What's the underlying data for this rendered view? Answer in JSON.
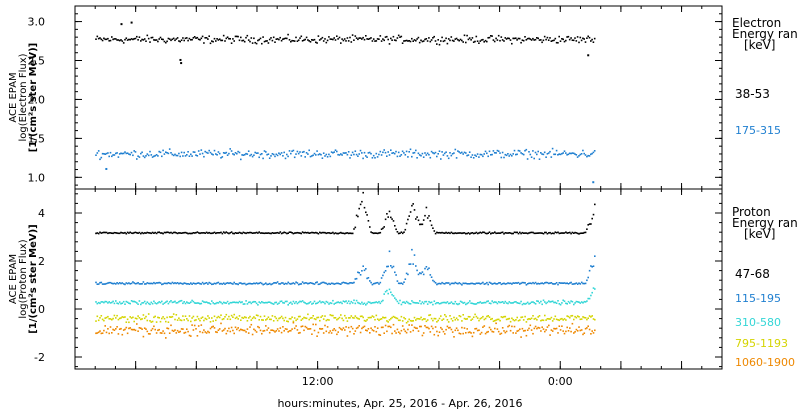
{
  "xlabel": "hours:minutes, Apr. 25, 2016 - Apr. 26, 2016",
  "chart_data": [
    {
      "type": "scatter",
      "panel": "electron",
      "ylabel_lines": [
        "ACE EPAM",
        "log(Electron Flux)",
        "[1/(cm²s ster MeV)]"
      ],
      "legend_title_lines": [
        "Electron",
        "Energy ran",
        "[keV]"
      ],
      "ylim": [
        0.85,
        3.2
      ],
      "yticks": [
        1.0,
        1.5,
        2.0,
        2.5,
        3.0
      ],
      "ytick_labels": [
        "1.0",
        "1.5",
        "2.0",
        "2.5",
        "3.0"
      ],
      "series": [
        {
          "name": "38-53",
          "color": "#000000",
          "level": 2.78,
          "spread": 0.07,
          "x_range": [
            "2016-04-25 01:00",
            "2016-04-26 01:40"
          ],
          "outliers": [
            {
              "x": "2016-04-25 02:15",
              "y": 2.98
            },
            {
              "x": "2016-04-25 02:45",
              "y": 3.0
            },
            {
              "x": "2016-04-25 05:10",
              "y": 2.52
            },
            {
              "x": "2016-04-25 05:12",
              "y": 2.48
            },
            {
              "x": "2016-04-26 01:20",
              "y": 2.58
            }
          ]
        },
        {
          "name": "175-315",
          "color": "#1f7fd0",
          "level": 1.31,
          "spread": 0.08,
          "x_range": [
            "2016-04-25 01:00",
            "2016-04-26 01:40"
          ],
          "outliers": [
            {
              "x": "2016-04-25 01:30",
              "y": 1.12
            },
            {
              "x": "2016-04-26 01:35",
              "y": 0.95
            }
          ]
        }
      ]
    },
    {
      "type": "scatter",
      "panel": "proton",
      "ylabel_lines": [
        "ACE EPAM",
        "log(Proton Flux)",
        "[1/(cm²s ster MeV)]"
      ],
      "legend_title_lines": [
        "Proton",
        "Energy ran",
        "[keV]"
      ],
      "ylim": [
        -2.5,
        5.0
      ],
      "yticks": [
        -2,
        0,
        2,
        4
      ],
      "ytick_labels": [
        "-2",
        "0",
        "2",
        "4"
      ],
      "series": [
        {
          "name": "47-68",
          "color": "#000000",
          "level": 3.2,
          "spread": 0.05,
          "bursts": [
            {
              "x": "2016-04-25 14:10",
              "height": 1.6
            },
            {
              "x": "2016-04-25 15:30",
              "height": 0.9
            },
            {
              "x": "2016-04-25 16:40",
              "height": 1.1
            },
            {
              "x": "2016-04-25 17:20",
              "height": 1.0
            },
            {
              "x": "2016-04-26 01:40",
              "height": 1.0
            }
          ]
        },
        {
          "name": "115-195",
          "color": "#1f7fd0",
          "level": 1.1,
          "spread": 0.07,
          "bursts": [
            {
              "x": "2016-04-25 14:10",
              "height": 0.8
            },
            {
              "x": "2016-04-25 15:30",
              "height": 1.2
            },
            {
              "x": "2016-04-25 16:40",
              "height": 1.3
            },
            {
              "x": "2016-04-25 17:20",
              "height": 0.8
            },
            {
              "x": "2016-04-26 01:40",
              "height": 1.1
            }
          ]
        },
        {
          "name": "310-580",
          "color": "#33d6d6",
          "level": 0.3,
          "spread": 0.12,
          "bursts": [
            {
              "x": "2016-04-25 15:30",
              "height": 0.6
            },
            {
              "x": "2016-04-26 01:40",
              "height": 0.5
            }
          ]
        },
        {
          "name": "795-1193",
          "color": "#d4d400",
          "level": -0.35,
          "spread": 0.22,
          "bursts": []
        },
        {
          "name": "1060-1900",
          "color": "#ee8800",
          "level": -0.85,
          "spread": 0.35,
          "bursts": []
        }
      ]
    }
  ],
  "x_axis": {
    "start": "2016-04-25 00:00",
    "end": "2016-04-26 08:00",
    "major_tick_labels": [
      {
        "t": "2016-04-25 12:00",
        "label": "12:00"
      },
      {
        "t": "2016-04-26 00:00",
        "label": "0:00"
      }
    ],
    "minor_tick_step_hours": 3
  }
}
